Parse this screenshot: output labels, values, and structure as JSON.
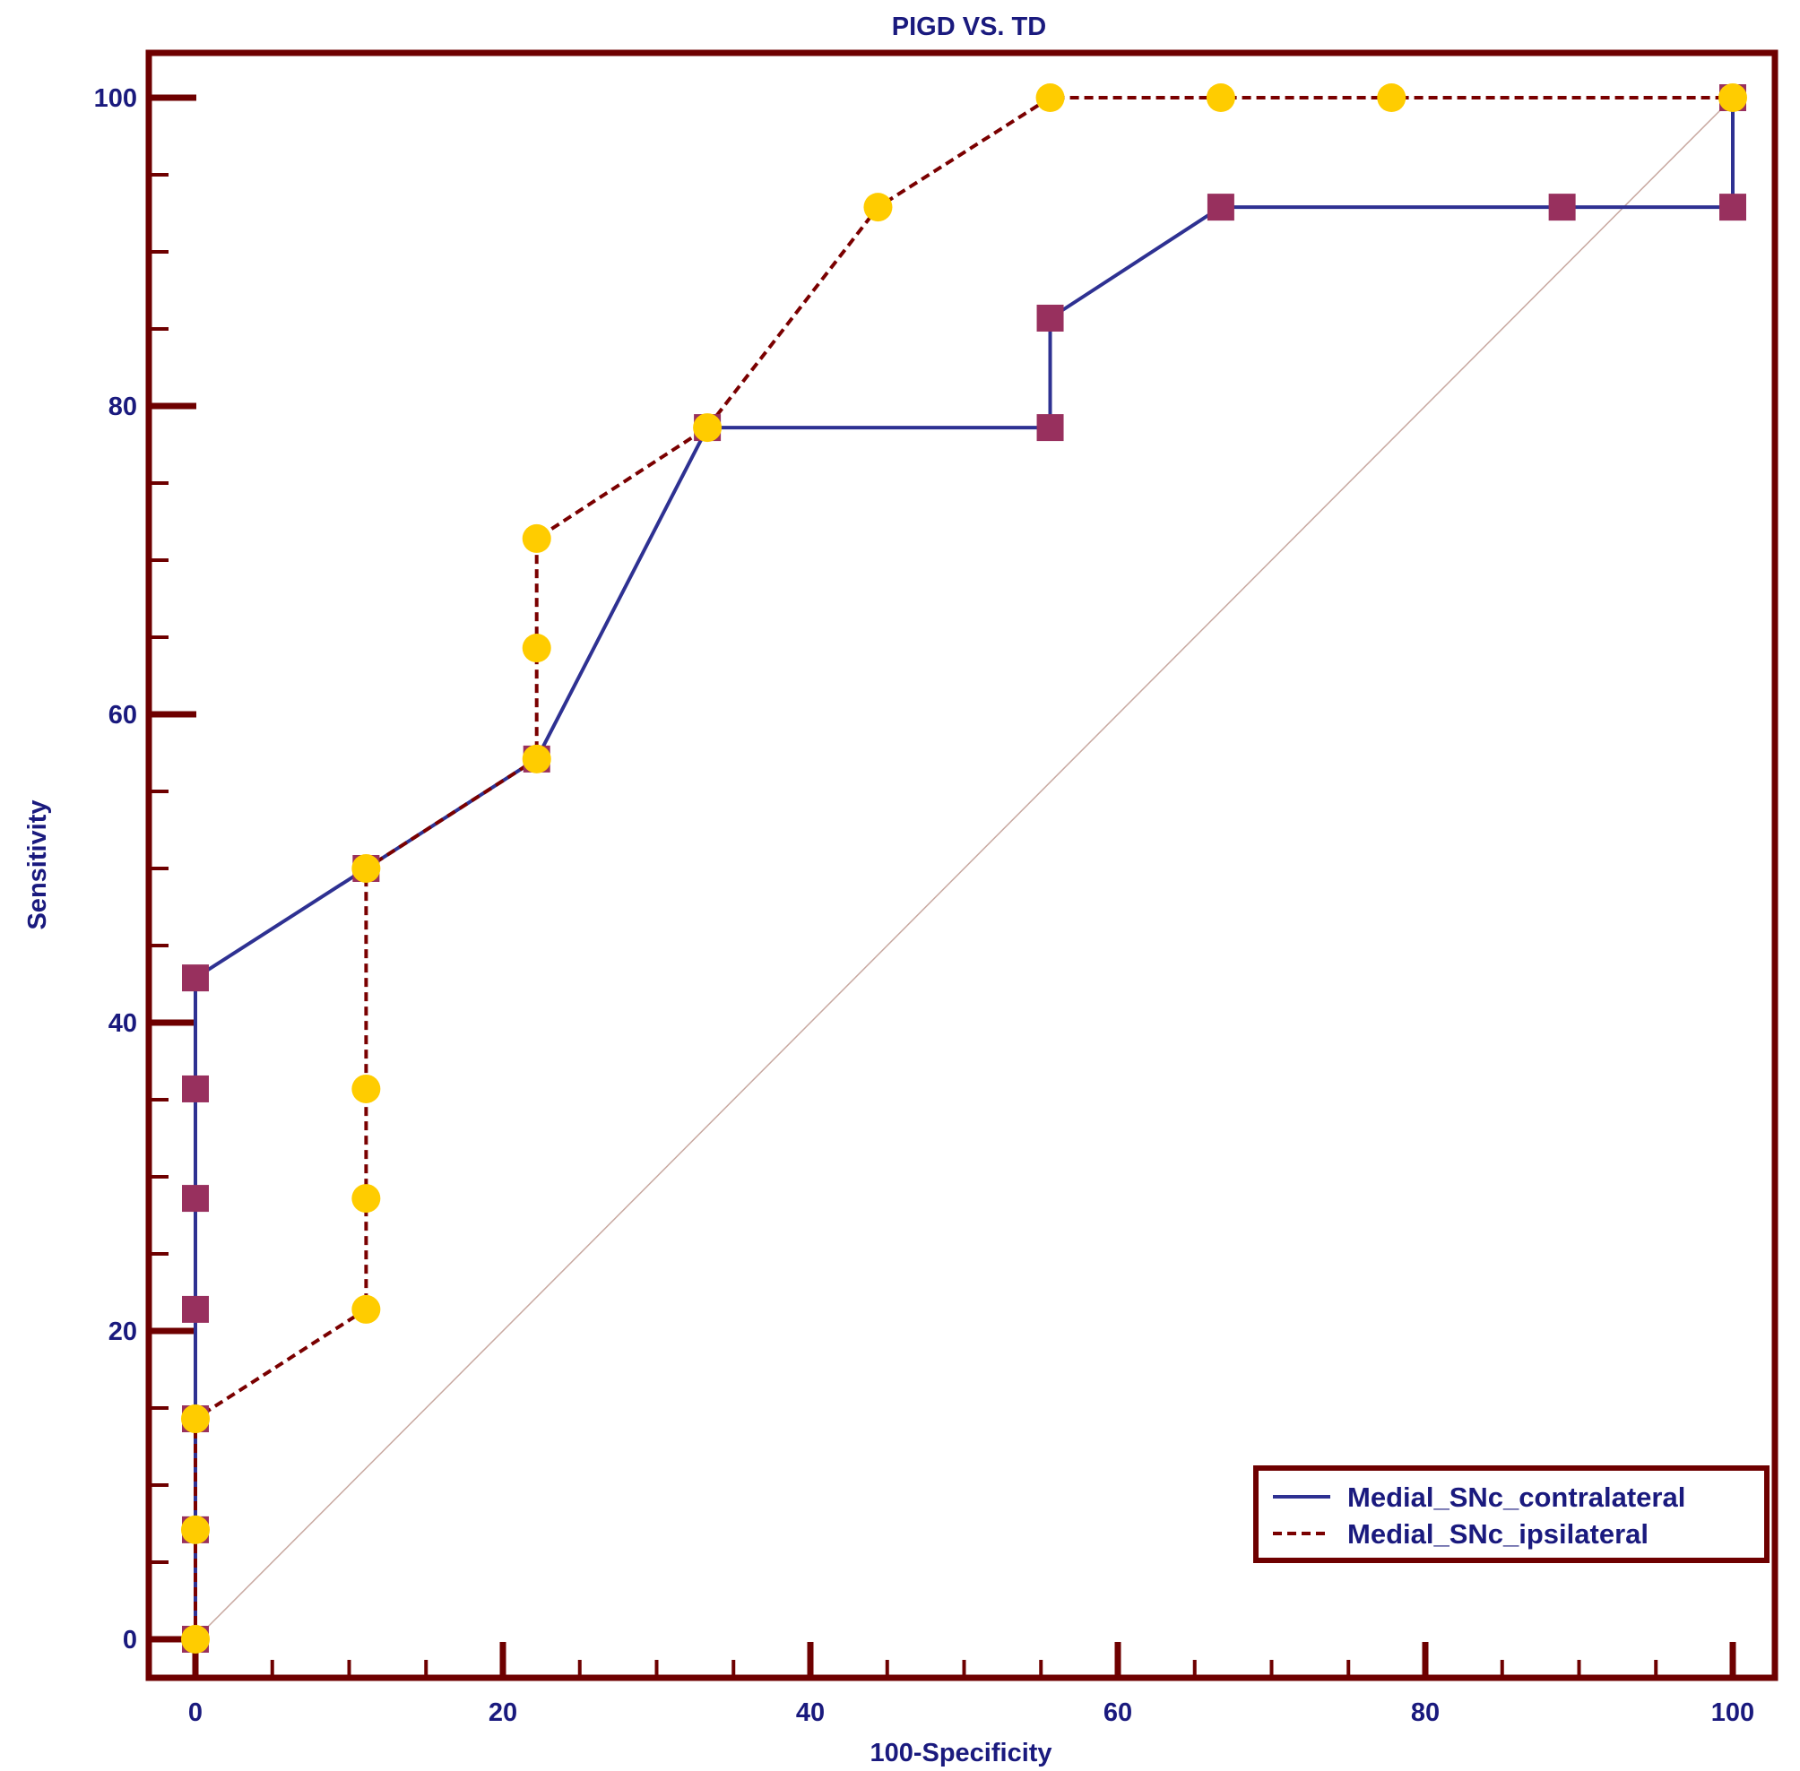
{
  "chart_data": {
    "type": "line",
    "title": "PIGD VS. TD",
    "xlabel": "100-Specificity",
    "ylabel": "Sensitivity",
    "xlim": [
      -3,
      103
    ],
    "ylim": [
      -3,
      103
    ],
    "x_ticks": [
      0,
      20,
      40,
      60,
      80,
      100
    ],
    "y_ticks": [
      0,
      20,
      40,
      60,
      80,
      100
    ],
    "x_tick_labels": [
      "0",
      "20",
      "40",
      "60",
      "80",
      "100"
    ],
    "y_tick_labels": [
      "0",
      "20",
      "40",
      "60",
      "80",
      "100"
    ],
    "grid": false,
    "legend_position": "bottom-right",
    "reference_line": [
      [
        0,
        0
      ],
      [
        100,
        100
      ]
    ],
    "series": [
      {
        "name": "Medial_SNc_contralateral",
        "line_style": "solid",
        "line_color": "#2e3192",
        "marker": "square",
        "marker_color": "#98305e",
        "x": [
          0,
          0,
          0,
          0,
          0,
          0,
          0,
          11.1,
          22.2,
          33.3,
          55.6,
          55.6,
          66.7,
          88.9,
          100,
          100
        ],
        "y": [
          0,
          7.1,
          14.3,
          21.4,
          28.6,
          35.7,
          42.9,
          50.0,
          57.1,
          78.6,
          78.6,
          85.7,
          92.9,
          92.9,
          92.9,
          100
        ]
      },
      {
        "name": "Medial_SNc_ipsilateral",
        "line_style": "dashed",
        "line_color": "#7a0000",
        "marker": "circle",
        "marker_color": "#ffcc00",
        "x": [
          0,
          0,
          0,
          11.1,
          11.1,
          11.1,
          11.1,
          22.2,
          22.2,
          22.2,
          33.3,
          44.4,
          55.6,
          66.7,
          77.8,
          100
        ],
        "y": [
          0,
          7.1,
          14.3,
          21.4,
          28.6,
          35.7,
          50.0,
          57.1,
          64.3,
          71.4,
          78.6,
          92.9,
          100,
          100,
          100,
          100
        ]
      }
    ]
  },
  "colors": {
    "frame": "#6e0000",
    "text": "#1a1a7e",
    "reference": "#c8a8a0"
  }
}
